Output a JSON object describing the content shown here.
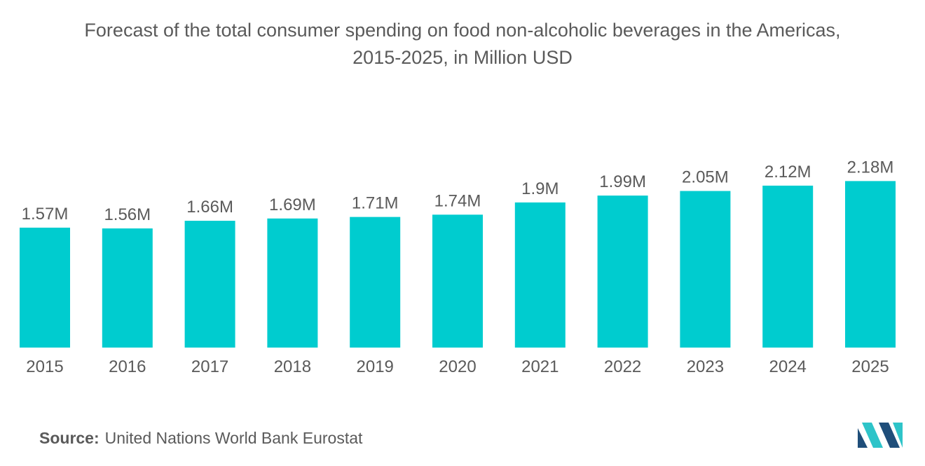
{
  "title_line1": "Forecast of the total consumer spending on food non-alcoholic beverages in the Americas,",
  "title_line2": "2015-2025, in Million USD",
  "source": {
    "label": "Source:",
    "text": "United Nations World Bank Eurostat"
  },
  "colors": {
    "bar": "#00CCCF",
    "text": "#5a5a5a",
    "logo_dark": "#1f4e7a",
    "logo_light": "#2ec4c9"
  },
  "chart_data": {
    "type": "bar",
    "categories": [
      "2015",
      "2016",
      "2017",
      "2018",
      "2019",
      "2020",
      "2021",
      "2022",
      "2023",
      "2024",
      "2025"
    ],
    "values": [
      1.57,
      1.56,
      1.66,
      1.69,
      1.71,
      1.74,
      1.9,
      1.99,
      2.05,
      2.12,
      2.18
    ],
    "value_labels": [
      "1.57M",
      "1.56M",
      "1.66M",
      "1.69M",
      "1.71M",
      "1.74M",
      "1.9M",
      "1.99M",
      "2.05M",
      "2.12M",
      "2.18M"
    ],
    "title": "Forecast of the total consumer spending on food non-alcoholic beverages in the Americas, 2015-2025, in Million USD",
    "xlabel": "",
    "ylabel": "",
    "grid": false,
    "legend": "none"
  }
}
